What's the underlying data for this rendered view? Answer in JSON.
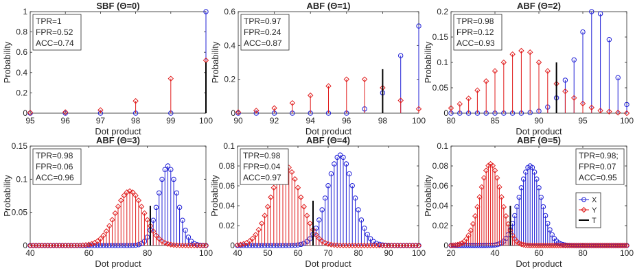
{
  "colors": {
    "x": "#1f1fd6",
    "y": "#e01b1b",
    "t": "#000000",
    "axis": "#262626"
  },
  "legend": {
    "items": [
      "X",
      "Y",
      "T"
    ]
  },
  "chart_data": [
    {
      "type": "stem",
      "title": "SBF (Θ=0)",
      "xlabel": "Dot product",
      "ylabel": "Probability",
      "xlim": [
        95,
        100
      ],
      "ylim": [
        0,
        1
      ],
      "xticks": [
        95,
        96,
        97,
        98,
        99,
        100
      ],
      "yticks": [
        0,
        0.2,
        0.4,
        0.6,
        0.8,
        1
      ],
      "metrics": [
        "TPR=1",
        "FPR=0.52",
        "ACC=0.74"
      ],
      "threshold": {
        "x": 100,
        "height": 0.5
      },
      "series": [
        {
          "name": "X",
          "x": [
            95,
            96,
            97,
            98,
            99,
            100
          ],
          "y": [
            0,
            0,
            0,
            0,
            0,
            1.0
          ]
        },
        {
          "name": "Y",
          "x": [
            95,
            96,
            97,
            98,
            99,
            100
          ],
          "y": [
            0.005,
            0.01,
            0.03,
            0.12,
            0.34,
            0.52
          ]
        }
      ]
    },
    {
      "type": "stem",
      "title": "ABF (Θ=1)",
      "xlabel": "Dot product",
      "ylabel": "Probability",
      "xlim": [
        90,
        100
      ],
      "ylim": [
        0,
        0.6
      ],
      "xticks": [
        90,
        92,
        94,
        96,
        98,
        100
      ],
      "yticks": [
        0,
        0.2,
        0.4,
        0.6
      ],
      "metrics": [
        "TPR=0.97",
        "FPR=0.24",
        "ACC=0.87"
      ],
      "threshold": {
        "x": 98,
        "height": 0.26
      },
      "series": [
        {
          "name": "X",
          "x": [
            90,
            91,
            92,
            93,
            94,
            95,
            96,
            97,
            98,
            99,
            100
          ],
          "y": [
            0,
            0,
            0,
            0,
            0,
            0,
            0,
            0.025,
            0.12,
            0.34,
            0.515
          ]
        },
        {
          "name": "Y",
          "x": [
            90,
            91,
            92,
            93,
            94,
            95,
            96,
            97,
            98,
            99,
            100
          ],
          "y": [
            0.006,
            0.015,
            0.03,
            0.06,
            0.105,
            0.16,
            0.2,
            0.2,
            0.15,
            0.075,
            0.025
          ]
        }
      ]
    },
    {
      "type": "stem",
      "title": "ABF (Θ=2)",
      "xlabel": "Dot product",
      "ylabel": "Probability",
      "xlim": [
        80,
        100
      ],
      "ylim": [
        0,
        0.2
      ],
      "xticks": [
        80,
        85,
        90,
        95,
        100
      ],
      "yticks": [
        0,
        0.05,
        0.1,
        0.15,
        0.2
      ],
      "metrics": [
        "TPR=0.98",
        "FPR=0.12",
        "ACC=0.93"
      ],
      "threshold": {
        "x": 92,
        "height": 0.1
      },
      "series": [
        {
          "name": "X",
          "x": [
            80,
            81,
            82,
            83,
            84,
            85,
            86,
            87,
            88,
            89,
            90,
            91,
            92,
            93,
            94,
            95,
            96,
            97,
            98,
            99,
            100
          ],
          "y": [
            0,
            0,
            0,
            0,
            0,
            0,
            0,
            0,
            0,
            0.001,
            0.004,
            0.012,
            0.03,
            0.065,
            0.105,
            0.16,
            0.2,
            0.196,
            0.145,
            0.07,
            0.017
          ]
        },
        {
          "name": "Y",
          "x": [
            80,
            81,
            82,
            83,
            84,
            85,
            86,
            87,
            88,
            89,
            90,
            91,
            92,
            93,
            94,
            95,
            96,
            97,
            98,
            99,
            100
          ],
          "y": [
            0.01,
            0.018,
            0.029,
            0.045,
            0.063,
            0.083,
            0.1,
            0.116,
            0.123,
            0.12,
            0.1,
            0.083,
            0.058,
            0.043,
            0.03,
            0.019,
            0.011,
            0.005,
            0.003,
            0.001,
            0
          ]
        }
      ]
    },
    {
      "type": "stem",
      "title": "ABF (Θ=3)",
      "xlabel": "Dot product",
      "ylabel": "Probability",
      "xlim": [
        40,
        100
      ],
      "ylim": [
        0,
        0.15
      ],
      "xticks": [
        40,
        60,
        80,
        100
      ],
      "yticks": [
        0,
        0.05,
        0.1,
        0.15
      ],
      "metrics": [
        "TPR=0.98",
        "FPR=0.06",
        "ACC=0.96"
      ],
      "threshold": {
        "x": 81,
        "height": 0.06
      },
      "dist": {
        "x": {
          "mu": 87,
          "sigma": 3.3,
          "peak": 0.12
        },
        "y": {
          "mu": 74,
          "sigma": 4.9,
          "peak": 0.082
        }
      }
    },
    {
      "type": "stem",
      "title": "ABF (Θ=4)",
      "xlabel": "Dot product",
      "ylabel": "Probability",
      "xlim": [
        40,
        100
      ],
      "ylim": [
        0,
        0.1
      ],
      "xticks": [
        40,
        50,
        60,
        70,
        80,
        90,
        100
      ],
      "yticks": [
        0,
        0.02,
        0.04,
        0.06,
        0.08,
        0.1
      ],
      "metrics": [
        "TPR=0.98",
        "FPR=0.04",
        "ACC=0.97"
      ],
      "threshold": {
        "x": 65,
        "height": 0.045
      },
      "dist": {
        "x": {
          "mu": 74,
          "sigma": 4.4,
          "peak": 0.091
        },
        "y": {
          "mu": 56,
          "sigma": 5.0,
          "peak": 0.08
        }
      }
    },
    {
      "type": "stem",
      "title": "ABF (Θ=5)",
      "xlabel": "Dot product",
      "ylabel": "Probability",
      "xlim": [
        20,
        100
      ],
      "ylim": [
        0,
        0.1
      ],
      "xticks": [
        20,
        40,
        60,
        80,
        100
      ],
      "yticks": [
        0,
        0.02,
        0.04,
        0.06,
        0.08,
        0.1
      ],
      "metrics": [
        "TPR=0.98;",
        "FPR=0.07",
        "ACC=0.95"
      ],
      "metrics_position": "top-right",
      "legend_here": true,
      "threshold": {
        "x": 47,
        "height": 0.04
      },
      "dist": {
        "x": {
          "mu": 56,
          "sigma": 5.0,
          "peak": 0.08
        },
        "y": {
          "mu": 38,
          "sigma": 4.9,
          "peak": 0.082
        }
      }
    }
  ]
}
